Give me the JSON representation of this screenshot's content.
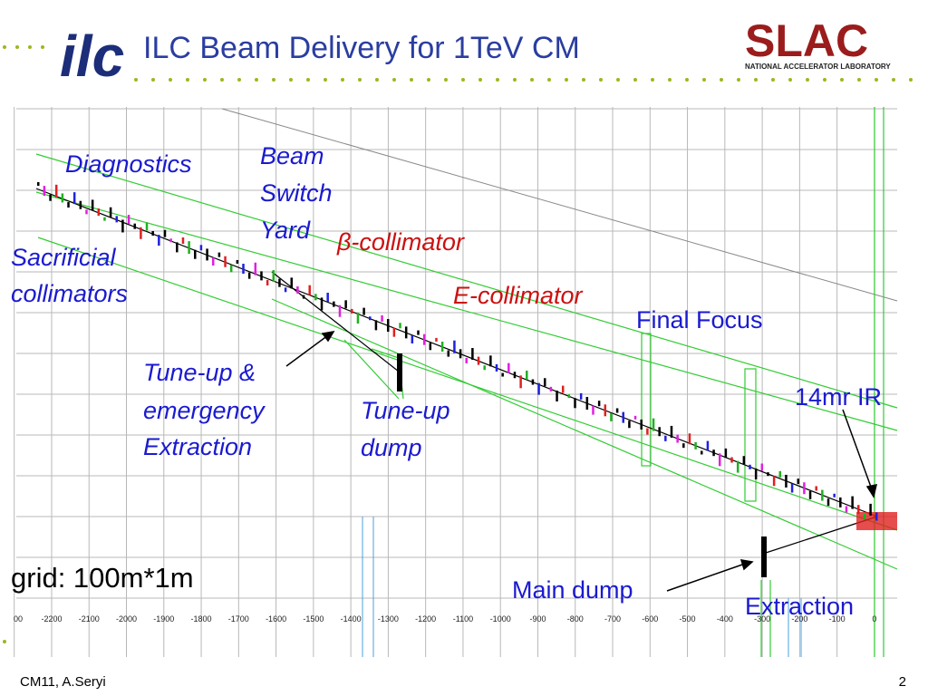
{
  "header": {
    "logo_left": "ilc",
    "title": "ILC Beam Delivery for 1TeV CM",
    "logo_right": "SLAC",
    "logo_right_subtitle": "NATIONAL ACCELERATOR LABORATORY"
  },
  "labels": {
    "diagnostics": "Diagnostics",
    "beam_switch_yard": [
      "Beam",
      "Switch",
      "Yard"
    ],
    "beta_collimator": "β-collimator",
    "sacrificial_collimators": [
      "Sacrificial",
      "collimators"
    ],
    "e_collimator": "E-collimator",
    "final_focus": "Final Focus",
    "tune_up_extraction": [
      "Tune-up &",
      "emergency",
      "Extraction"
    ],
    "tune_up_dump": [
      "Tune-up",
      "dump"
    ],
    "ir": "14mr IR",
    "grid": "grid: 100m*1m",
    "main_dump": "Main dump",
    "extraction": "Extraction"
  },
  "axis_labels": [
    "00",
    "-2200",
    "-2100",
    "-2000",
    "-1900",
    "-1800",
    "-1700",
    "-1600",
    "-1500",
    "-1400",
    "-1300",
    "-1200",
    "-1100",
    "-1000",
    "-900",
    "-800",
    "-700",
    "-600",
    "-500",
    "-400",
    "-300",
    "-200",
    "-100",
    "0"
  ],
  "footer": {
    "author": "CM11, A.Seryi",
    "page": "2"
  }
}
